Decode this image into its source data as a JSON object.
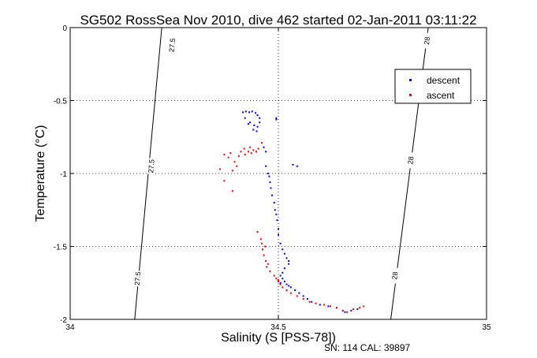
{
  "chart_data": {
    "type": "scatter",
    "title": "SG502 RossSea Nov 2010, dive 462 started 02-Jan-2011 03:11:22",
    "xlabel": "Salinity (S [PSS-78])",
    "ylabel": "Temperature (°C)",
    "xlim": [
      34,
      35
    ],
    "ylim": [
      -2,
      0
    ],
    "x_ticks": [
      "34",
      "34.5",
      "35"
    ],
    "y_ticks": [
      "0",
      "-0.5",
      "-1",
      "-1.5",
      "-2"
    ],
    "grid": "dotted",
    "legend_position": "top-right",
    "footer": "SN: 114  CAL: 39897",
    "isopycnals": [
      {
        "label": "27.5",
        "points": [
          [
            34.22,
            0
          ],
          [
            34.155,
            -2
          ]
        ]
      },
      {
        "label": "28",
        "points": [
          [
            34.86,
            0
          ],
          [
            34.77,
            -2
          ]
        ]
      }
    ],
    "isopycnal_labels": [
      {
        "text": "27.5",
        "x": 34.245,
        "y": -0.12
      },
      {
        "text": "27.5",
        "x": 34.195,
        "y": -0.95
      },
      {
        "text": "27.5",
        "x": 34.162,
        "y": -1.72
      },
      {
        "text": "28",
        "x": 34.857,
        "y": -0.09
      },
      {
        "text": "28",
        "x": 34.818,
        "y": -0.91
      },
      {
        "text": "28",
        "x": 34.78,
        "y": -1.7
      }
    ],
    "series": [
      {
        "name": "descent",
        "color": "#0000ff",
        "points": [
          [
            34.415,
            -0.58
          ],
          [
            34.422,
            -0.575
          ],
          [
            34.43,
            -0.58
          ],
          [
            34.437,
            -0.575
          ],
          [
            34.445,
            -0.585
          ],
          [
            34.45,
            -0.6
          ],
          [
            34.455,
            -0.62
          ],
          [
            34.455,
            -0.65
          ],
          [
            34.45,
            -0.68
          ],
          [
            34.448,
            -0.71
          ],
          [
            34.44,
            -0.7
          ],
          [
            34.428,
            -0.66
          ],
          [
            34.42,
            -0.62
          ],
          [
            34.432,
            -0.65
          ],
          [
            34.442,
            -0.67
          ],
          [
            34.495,
            -0.62
          ],
          [
            34.495,
            -0.63
          ],
          [
            34.47,
            -0.85
          ],
          [
            34.465,
            -0.82
          ],
          [
            34.47,
            -0.95
          ],
          [
            34.475,
            -1.0
          ],
          [
            34.478,
            -1.02
          ],
          [
            34.48,
            -1.06
          ],
          [
            34.482,
            -1.1
          ],
          [
            34.485,
            -1.15
          ],
          [
            34.49,
            -1.2
          ],
          [
            34.492,
            -1.25
          ],
          [
            34.495,
            -1.28
          ],
          [
            34.497,
            -1.32
          ],
          [
            34.5,
            -1.38
          ],
          [
            34.5,
            -1.42
          ],
          [
            34.505,
            -1.48
          ],
          [
            34.51,
            -1.52
          ],
          [
            34.515,
            -1.55
          ],
          [
            34.52,
            -1.58
          ],
          [
            34.525,
            -1.62
          ],
          [
            34.525,
            -1.6
          ],
          [
            34.515,
            -1.65
          ],
          [
            34.51,
            -1.68
          ],
          [
            34.505,
            -1.7
          ],
          [
            34.51,
            -1.72
          ],
          [
            34.515,
            -1.74
          ],
          [
            34.52,
            -1.76
          ],
          [
            34.525,
            -1.77
          ],
          [
            34.53,
            -1.78
          ],
          [
            34.54,
            -1.8
          ],
          [
            34.55,
            -1.82
          ],
          [
            34.56,
            -1.84
          ],
          [
            34.57,
            -1.86
          ],
          [
            34.58,
            -1.88
          ],
          [
            34.6,
            -1.9
          ],
          [
            34.62,
            -1.91
          ],
          [
            34.64,
            -1.92
          ],
          [
            34.655,
            -1.94
          ],
          [
            34.66,
            -1.95
          ],
          [
            34.675,
            -1.94
          ],
          [
            34.69,
            -1.93
          ],
          [
            34.535,
            -0.94
          ],
          [
            34.545,
            -0.95
          ],
          [
            34.505,
            -1.75
          ]
        ]
      },
      {
        "name": "ascent",
        "color": "#ff0000",
        "points": [
          [
            34.37,
            -0.87
          ],
          [
            34.38,
            -0.89
          ],
          [
            34.385,
            -0.86
          ],
          [
            34.395,
            -0.92
          ],
          [
            34.405,
            -0.88
          ],
          [
            34.41,
            -0.85
          ],
          [
            34.418,
            -0.83
          ],
          [
            34.42,
            -0.87
          ],
          [
            34.428,
            -0.85
          ],
          [
            34.435,
            -0.86
          ],
          [
            34.44,
            -0.84
          ],
          [
            34.447,
            -0.85
          ],
          [
            34.452,
            -0.83
          ],
          [
            34.46,
            -0.79
          ],
          [
            34.432,
            -0.82
          ],
          [
            34.4,
            -0.95
          ],
          [
            34.39,
            -0.98
          ],
          [
            34.36,
            -0.97
          ],
          [
            34.37,
            -1.05
          ],
          [
            34.39,
            -1.12
          ],
          [
            34.45,
            -1.4
          ],
          [
            34.46,
            -1.48
          ],
          [
            34.462,
            -1.52
          ],
          [
            34.465,
            -1.56
          ],
          [
            34.47,
            -1.6
          ],
          [
            34.472,
            -1.64
          ],
          [
            34.48,
            -1.67
          ],
          [
            34.49,
            -1.7
          ],
          [
            34.495,
            -1.72
          ],
          [
            34.5,
            -1.74
          ],
          [
            34.505,
            -1.76
          ],
          [
            34.51,
            -1.78
          ],
          [
            34.52,
            -1.8
          ],
          [
            34.53,
            -1.82
          ],
          [
            34.545,
            -1.84
          ],
          [
            34.56,
            -1.86
          ],
          [
            34.575,
            -1.88
          ],
          [
            34.59,
            -1.89
          ],
          [
            34.61,
            -1.9
          ],
          [
            34.625,
            -1.91
          ],
          [
            34.64,
            -1.92
          ],
          [
            34.655,
            -1.94
          ],
          [
            34.665,
            -1.95
          ],
          [
            34.68,
            -1.93
          ],
          [
            34.695,
            -1.92
          ],
          [
            34.705,
            -1.91
          ],
          [
            34.468,
            -1.5
          ],
          [
            34.458,
            -1.45
          ],
          [
            34.475,
            -1.62
          ],
          [
            34.5,
            -1.73
          ]
        ]
      }
    ]
  }
}
